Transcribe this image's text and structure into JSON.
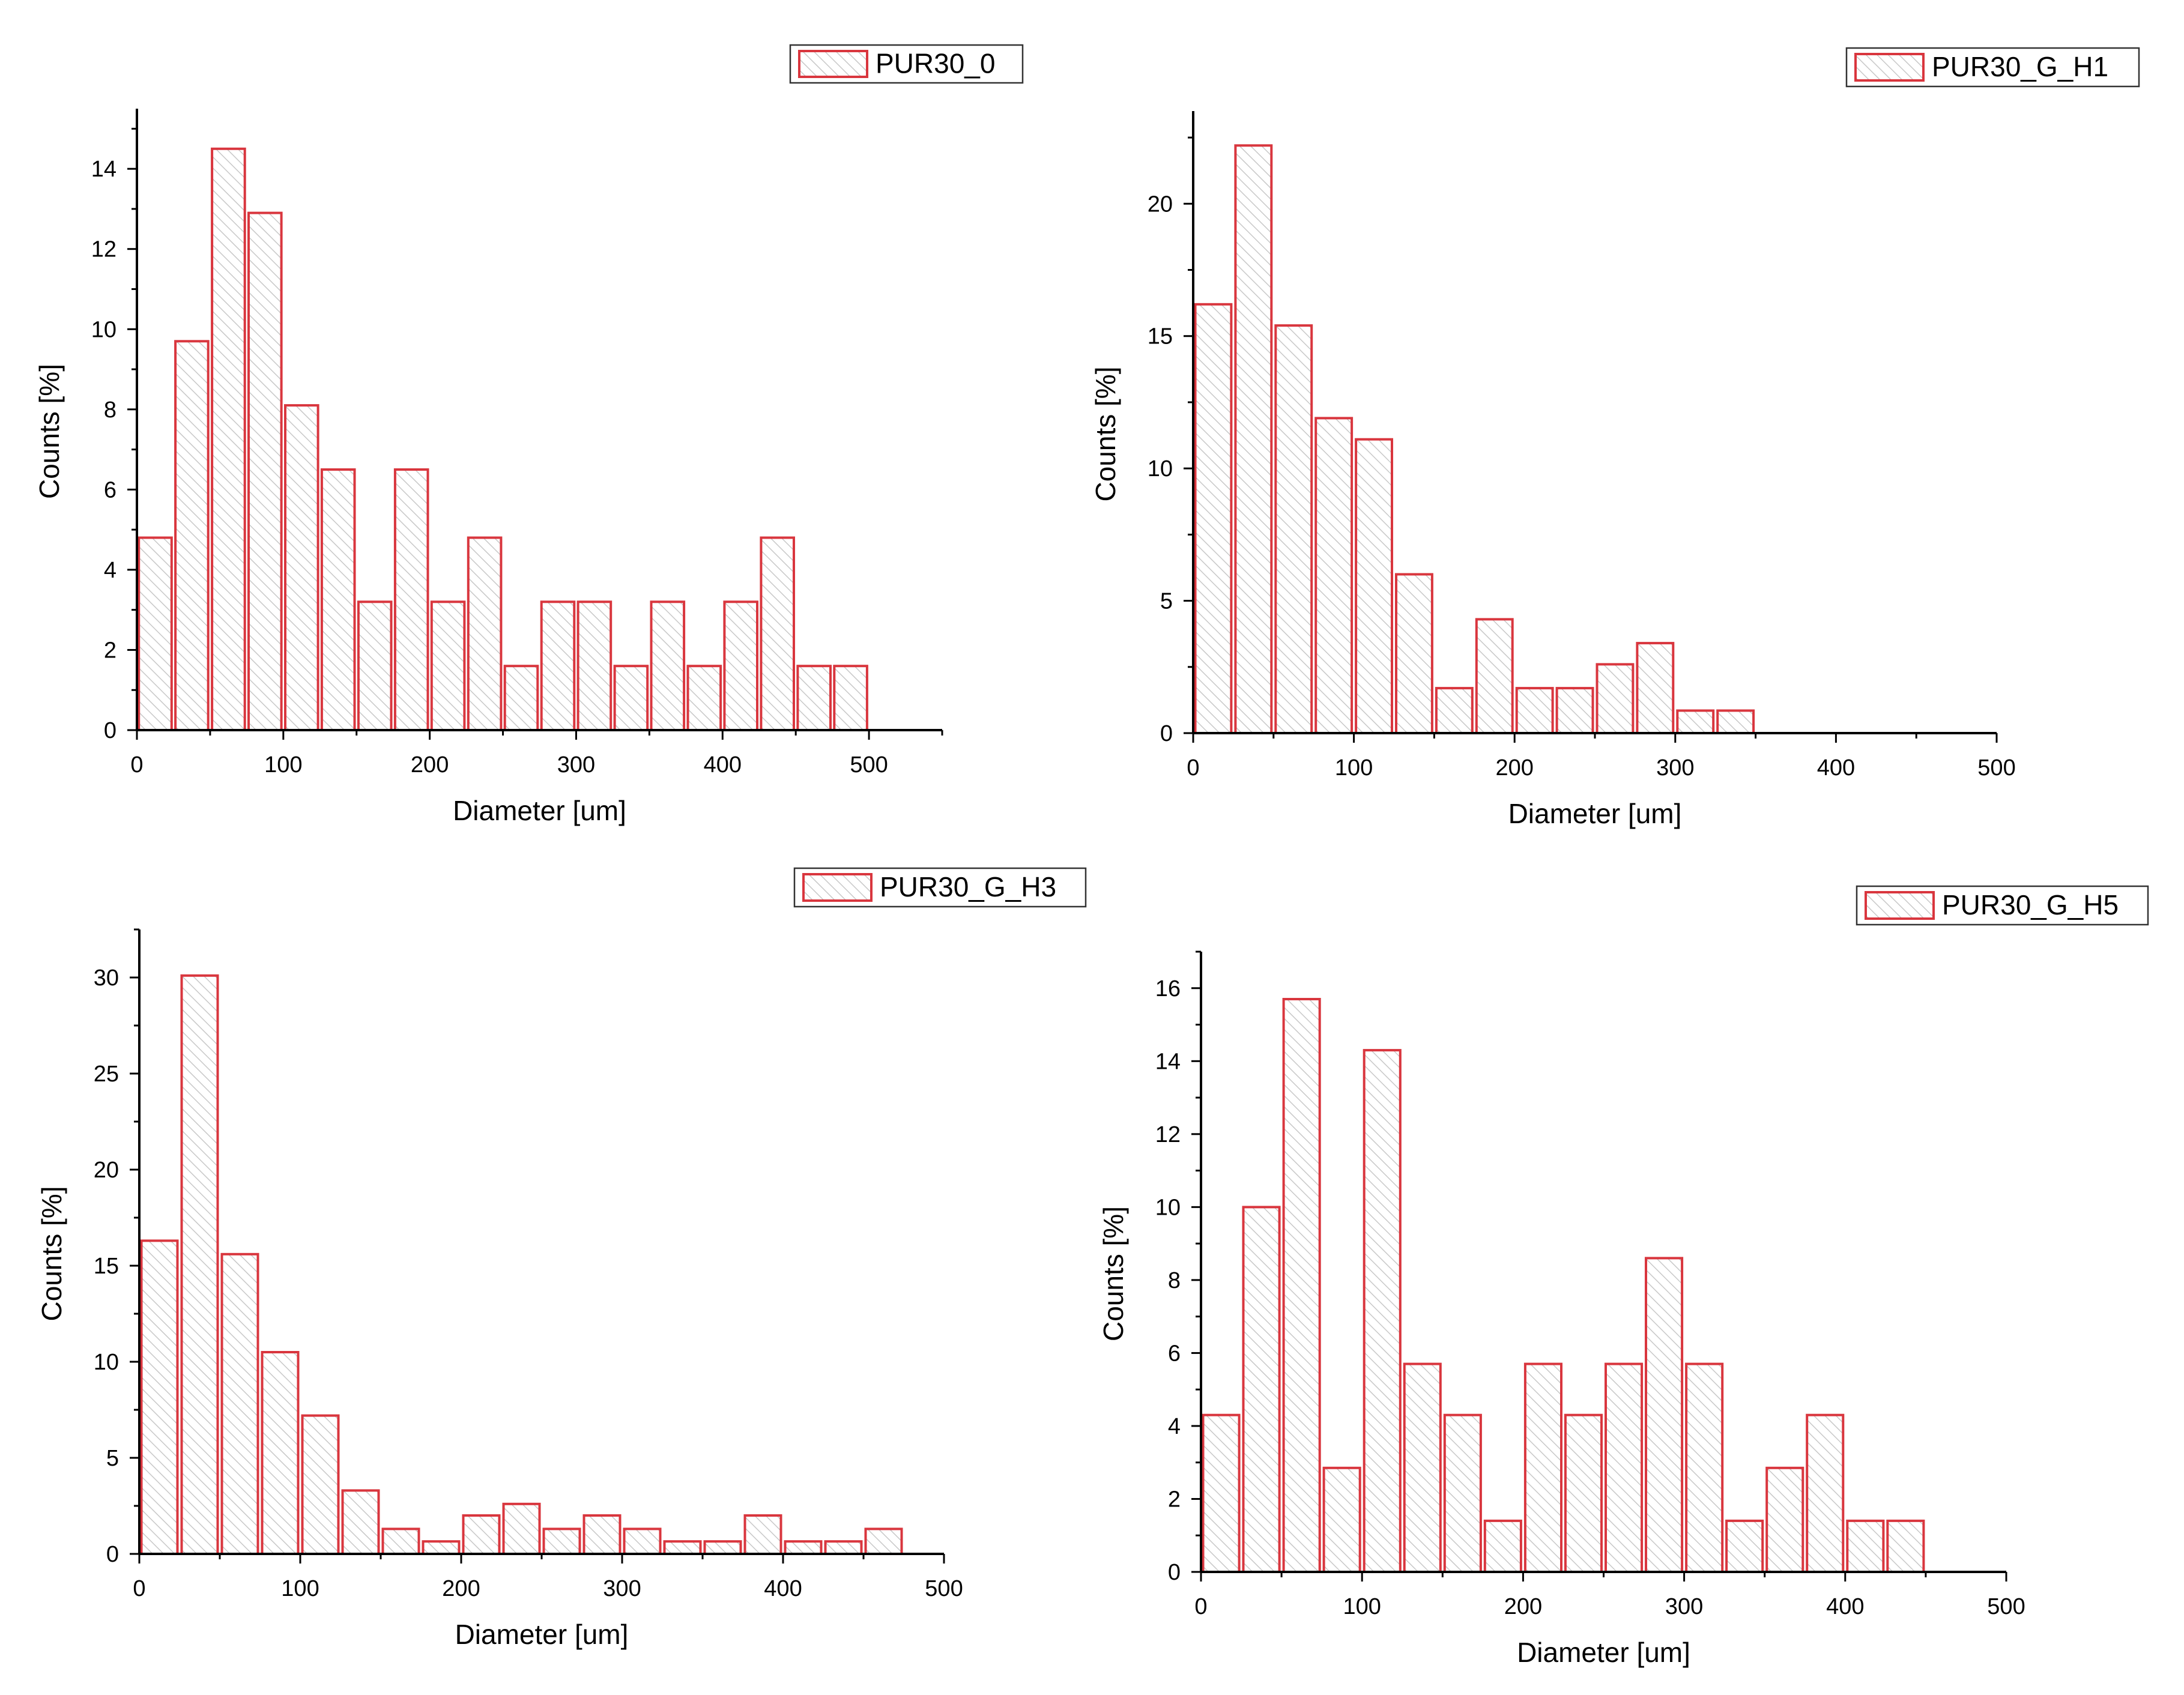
{
  "chart_data": [
    {
      "type": "bar",
      "legend": "PUR30_0",
      "xlabel": "Diameter [um]",
      "ylabel": "Counts [%]",
      "xlim": [
        0,
        550
      ],
      "ylim": [
        0,
        15.5
      ],
      "xticks": [
        0,
        100,
        200,
        300,
        400,
        500
      ],
      "xtick_labels": [
        "0",
        "100",
        "200",
        "300",
        "400",
        "500"
      ],
      "yticks": [
        0,
        2,
        4,
        6,
        8,
        10,
        12,
        14
      ],
      "ytick_labels": [
        "0",
        "2",
        "4",
        "6",
        "8",
        "10",
        "12",
        "14"
      ],
      "bin_width": 25,
      "x": [
        12.5,
        37.5,
        62.5,
        87.5,
        112.5,
        137.5,
        162.5,
        187.5,
        212.5,
        237.5,
        262.5,
        287.5,
        312.5,
        337.5,
        362.5,
        387.5,
        412.5,
        437.5,
        462.5,
        487.5
      ],
      "values": [
        4.8,
        9.7,
        14.5,
        12.9,
        8.1,
        6.5,
        3.2,
        6.5,
        3.2,
        4.8,
        1.6,
        3.2,
        3.2,
        1.6,
        3.2,
        1.6,
        3.2,
        4.8,
        1.6,
        1.6
      ],
      "color": "#d9363e"
    },
    {
      "type": "bar",
      "legend": "PUR30_G_H1",
      "xlabel": "Diameter [um]",
      "ylabel": "Counts [%]",
      "xlim": [
        0,
        500
      ],
      "ylim": [
        0,
        23.5
      ],
      "xticks": [
        0,
        100,
        200,
        300,
        400,
        500
      ],
      "xtick_labels": [
        "0",
        "100",
        "200",
        "300",
        "400",
        "500"
      ],
      "yticks": [
        0,
        5,
        10,
        15,
        20
      ],
      "ytick_labels": [
        "0",
        "5",
        "10",
        "15",
        "20"
      ],
      "bin_width": 25,
      "x": [
        12.5,
        37.5,
        62.5,
        87.5,
        112.5,
        137.5,
        162.5,
        187.5,
        212.5,
        237.5,
        262.5,
        287.5,
        312.5,
        337.5
      ],
      "values": [
        16.2,
        22.2,
        15.4,
        11.9,
        11.1,
        6.0,
        1.7,
        4.3,
        1.7,
        1.7,
        2.6,
        3.4,
        0.85,
        0.85
      ],
      "color": "#d9363e"
    },
    {
      "type": "bar",
      "legend": "PUR30_G_H3",
      "xlabel": "Diameter [um]",
      "ylabel": "Counts [%]",
      "xlim": [
        0,
        500
      ],
      "ylim": [
        0,
        32.5
      ],
      "xticks": [
        0,
        100,
        200,
        300,
        400,
        500
      ],
      "xtick_labels": [
        "0",
        "100",
        "200",
        "300",
        "400",
        "500"
      ],
      "yticks": [
        0,
        5,
        10,
        15,
        20,
        25,
        30
      ],
      "ytick_labels": [
        "0",
        "5",
        "10",
        "15",
        "20",
        "25",
        "30"
      ],
      "bin_width": 25,
      "x": [
        12.5,
        37.5,
        62.5,
        87.5,
        112.5,
        137.5,
        162.5,
        187.5,
        212.5,
        237.5,
        262.5,
        287.5,
        312.5,
        337.5,
        362.5,
        387.5,
        412.5,
        437.5,
        462.5
      ],
      "values": [
        16.3,
        30.1,
        15.6,
        10.5,
        7.2,
        3.3,
        1.3,
        0.65,
        2.0,
        2.6,
        1.3,
        2.0,
        1.3,
        0.65,
        0.65,
        2.0,
        0.65,
        0.65,
        1.3
      ],
      "color": "#d9363e"
    },
    {
      "type": "bar",
      "legend": "PUR30_G_H5",
      "xlabel": "Diameter [um]",
      "ylabel": "Counts [%]",
      "xlim": [
        0,
        500
      ],
      "ylim": [
        0,
        17
      ],
      "xticks": [
        0,
        100,
        200,
        300,
        400,
        500
      ],
      "xtick_labels": [
        "0",
        "100",
        "200",
        "300",
        "400",
        "500"
      ],
      "yticks": [
        0,
        2,
        4,
        6,
        8,
        10,
        12,
        14,
        16
      ],
      "ytick_labels": [
        "0",
        "2",
        "4",
        "6",
        "8",
        "10",
        "12",
        "14",
        "16"
      ],
      "bin_width": 25,
      "x": [
        12.5,
        37.5,
        62.5,
        87.5,
        112.5,
        137.5,
        162.5,
        187.5,
        212.5,
        237.5,
        262.5,
        287.5,
        312.5,
        337.5,
        362.5,
        387.5,
        412.5,
        437.5
      ],
      "values": [
        4.3,
        10.0,
        15.7,
        2.85,
        14.3,
        5.7,
        4.3,
        1.4,
        5.7,
        4.3,
        5.7,
        8.6,
        5.7,
        1.4,
        2.85,
        4.3,
        1.4,
        1.4
      ],
      "color": "#d9363e"
    }
  ]
}
